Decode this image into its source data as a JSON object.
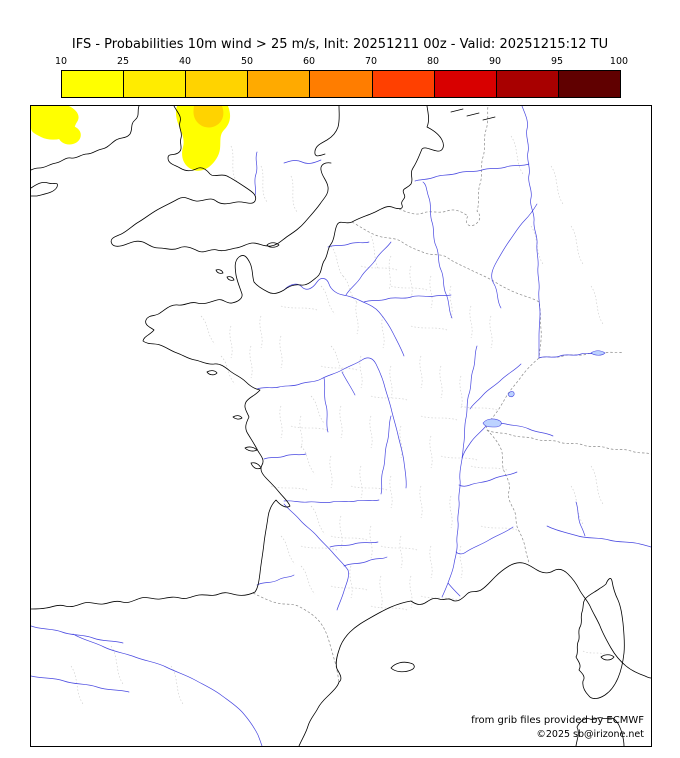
{
  "title": "IFS - Probabilities 10m wind > 25 m/s, Init: 20251211 00z - Valid: 20251215:12 TU",
  "colorbar": {
    "ticks": [
      "10",
      "25",
      "40",
      "50",
      "60",
      "70",
      "80",
      "90",
      "95",
      "100"
    ],
    "segment_colors": [
      "#ffff00",
      "#ffec00",
      "#ffd300",
      "#ffaa00",
      "#ff7d00",
      "#ff4000",
      "#d80000",
      "#a80000",
      "#600000"
    ]
  },
  "map": {
    "background": "#ffffff",
    "coastline_color": "#000000",
    "country_border_color": "#8a8a8a",
    "admin_border_color": "#c8c8c8",
    "river_color": "#4646e0",
    "lake_fill_color": "#bcd2ff",
    "frame_color": "#000000",
    "overlays": [
      {
        "id": "ov-low",
        "value_range": "10-40",
        "color": "#ffff00"
      },
      {
        "id": "ov-mid",
        "value_range": "40-50",
        "color": "#ffd300"
      }
    ]
  },
  "credits": {
    "source": "from grib files provided by ECMWF",
    "copyright": "©2025 sb@irizone.net"
  }
}
